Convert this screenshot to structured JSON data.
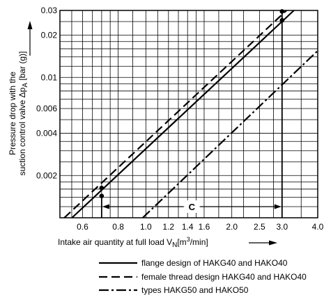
{
  "chart_data": {
    "type": "line",
    "xlabel": {
      "prefix": "Intake air quantity at full load V",
      "subscript": "N",
      "unit_open": "[m",
      "superscript": "3",
      "unit_close": "/min]"
    },
    "ylabel": {
      "line1": "Pressure drop with the",
      "line2_prefix": "suction control valve Δp",
      "line2_subscript": "A",
      "line2_unit": " [bar (g)]"
    },
    "x_scale": "log",
    "y_scale": "log",
    "xlim": [
      0.5,
      4.0
    ],
    "ylim": [
      0.001,
      0.03
    ],
    "grid": true,
    "x_ticks": [
      {
        "value": 0.6,
        "label": "0.6"
      },
      {
        "value": 0.8,
        "label": "0.8"
      },
      {
        "value": 1.0,
        "label": "1.0"
      },
      {
        "value": 1.2,
        "label": "1.2"
      },
      {
        "value": 1.4,
        "label": "1.4"
      },
      {
        "value": 1.6,
        "label": "1.6"
      },
      {
        "value": 2.0,
        "label": "2.0"
      },
      {
        "value": 2.5,
        "label": "2.5"
      },
      {
        "value": 3.0,
        "label": "3.0"
      },
      {
        "value": 4.0,
        "label": "4.0"
      }
    ],
    "y_ticks": [
      {
        "value": 0.002,
        "label": "0.002"
      },
      {
        "value": 0.004,
        "label": "0.004"
      },
      {
        "value": 0.006,
        "label": "0.006"
      },
      {
        "value": 0.01,
        "label": "0.01"
      },
      {
        "value": 0.02,
        "label": "0.02"
      },
      {
        "value": 0.03,
        "label": "0.03"
      }
    ],
    "x_grid": [
      0.55,
      0.6,
      0.65,
      0.7,
      0.75,
      0.8,
      0.9,
      1.0,
      1.1,
      1.2,
      1.3,
      1.4,
      1.5,
      1.6,
      1.8,
      2.0,
      2.2,
      2.5,
      2.8,
      3.0,
      3.5,
      4.0
    ],
    "y_grid": [
      0.0012,
      0.0014,
      0.0016,
      0.0018,
      0.002,
      0.0025,
      0.003,
      0.0035,
      0.004,
      0.005,
      0.006,
      0.007,
      0.008,
      0.009,
      0.01,
      0.012,
      0.014,
      0.016,
      0.018,
      0.02,
      0.025,
      0.03
    ],
    "series": [
      {
        "name": "flange design of HAKG40 and HAKO40",
        "style": "solid",
        "x": [
          0.551,
          3.3
        ],
        "y": [
          0.001,
          0.03
        ]
      },
      {
        "name": "female thread design HAKG40 and HAKO40",
        "style": "dashed",
        "x": [
          0.518,
          3.11
        ],
        "y": [
          0.001,
          0.03
        ]
      },
      {
        "name": "types HAKG50 and HAKO50",
        "style": "dashdot",
        "x": [
          0.975,
          4.0
        ],
        "y": [
          0.001,
          0.0155
        ]
      }
    ],
    "points": [
      {
        "x": 0.7,
        "y": 0.00163
      },
      {
        "x": 0.7,
        "y": 0.00143
      },
      {
        "x": 3.0,
        "y": 0.0295
      },
      {
        "x": 3.0,
        "y": 0.0255
      }
    ],
    "annotation": {
      "label": "C",
      "x_from": 0.7,
      "x_to": 3.0
    }
  }
}
